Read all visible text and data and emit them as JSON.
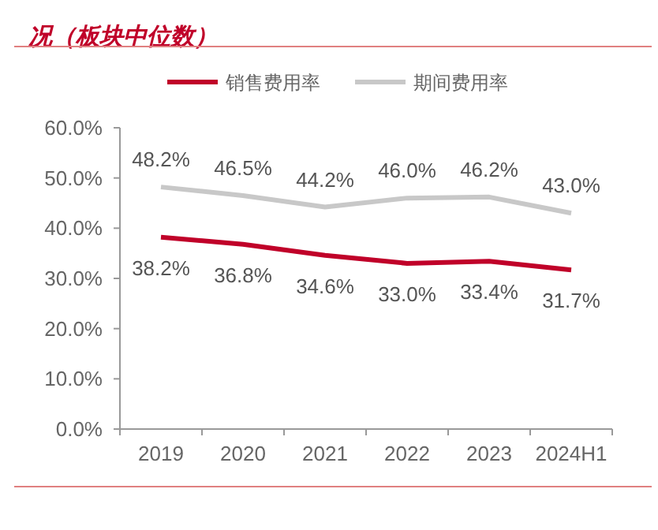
{
  "chart_data": {
    "type": "line",
    "title": "况（板块中位数）",
    "categories": [
      "2019",
      "2020",
      "2021",
      "2022",
      "2023",
      "2024H1"
    ],
    "series": [
      {
        "name": "销售费用率",
        "color": "#c00029",
        "values": [
          38.2,
          36.8,
          34.6,
          33.0,
          33.4,
          31.7
        ],
        "value_labels": [
          "38.2%",
          "36.8%",
          "34.6%",
          "33.0%",
          "33.4%",
          "31.7%"
        ]
      },
      {
        "name": "期间费用率",
        "color": "#c8c8c8",
        "values": [
          48.2,
          46.5,
          44.2,
          46.0,
          46.2,
          43.0
        ],
        "value_labels": [
          "48.2%",
          "46.5%",
          "44.2%",
          "46.0%",
          "46.2%",
          "43.0%"
        ]
      }
    ],
    "ylim": [
      0,
      60
    ],
    "yticks": [
      {
        "value": 0,
        "label": "0.0%"
      },
      {
        "value": 10,
        "label": "10.0%"
      },
      {
        "value": 20,
        "label": "20.0%"
      },
      {
        "value": 30,
        "label": "30.0%"
      },
      {
        "value": 40,
        "label": "40.0%"
      },
      {
        "value": 50,
        "label": "50.0%"
      },
      {
        "value": 60,
        "label": "60.0%"
      }
    ],
    "legend": "top"
  }
}
